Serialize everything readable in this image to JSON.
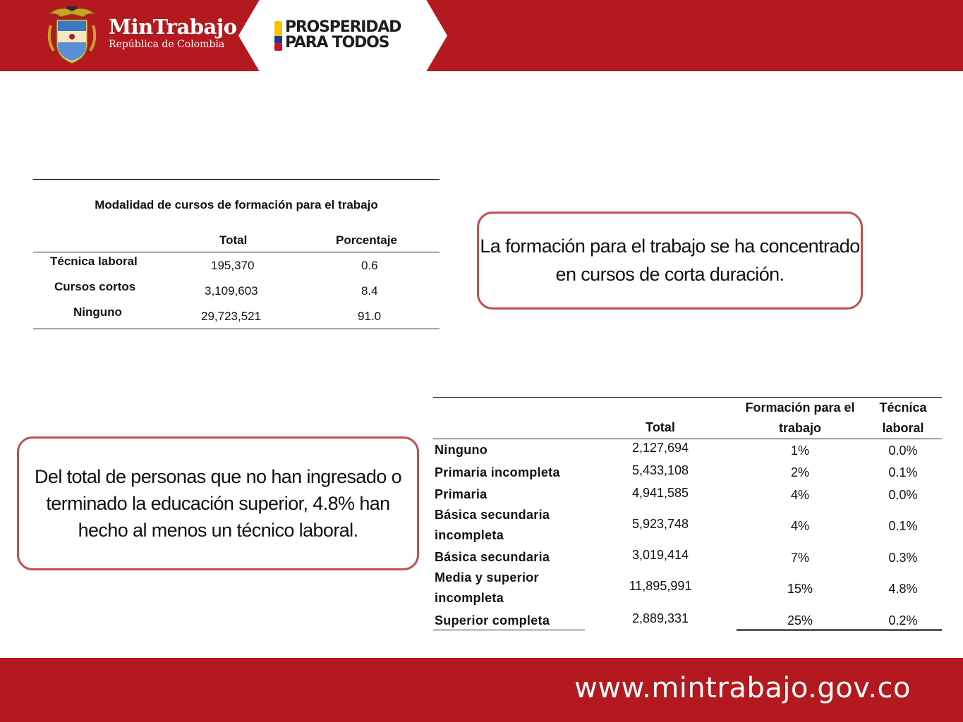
{
  "header": {
    "ministry_name": "MinTrabajo",
    "ministry_sub": "República de Colombia",
    "slogan_line1": "PROSPERIDAD",
    "slogan_line2": "PARA TODOS",
    "brand_color": "#b3191e"
  },
  "table1": {
    "title": "Modalidad de cursos de formación para el trabajo",
    "col_total": "Total",
    "col_pct": "Porcentaje",
    "rows": [
      {
        "label": "Técnica laboral",
        "total": "195,370",
        "pct": "0.6"
      },
      {
        "label": "Cursos cortos",
        "total": "3,109,603",
        "pct": "8.4"
      },
      {
        "label": "Ninguno",
        "total": "29,723,521",
        "pct": "91.0"
      }
    ]
  },
  "callout1": "La formación para el trabajo se ha concentrado en cursos de corta duración.",
  "callout2": "Del total de personas que no han ingresado o terminado la educación superior, 4.8% han hecho al menos un técnico laboral.",
  "table2": {
    "col_total": "Total",
    "col_formacion": "Formación para el trabajo",
    "col_tecnica": "Técnica laboral",
    "rows": [
      {
        "label": "Ninguno",
        "total": "2,127,694",
        "formacion": "1%",
        "tecnica": "0.0%"
      },
      {
        "label": "Primaria incompleta",
        "total": "5,433,108",
        "formacion": "2%",
        "tecnica": "0.1%"
      },
      {
        "label": "Primaria",
        "total": "4,941,585",
        "formacion": "4%",
        "tecnica": "0.0%"
      },
      {
        "label": "Básica secundaria incompleta",
        "total": "5,923,748",
        "formacion": "4%",
        "tecnica": "0.1%"
      },
      {
        "label": "Básica secundaria",
        "total": "3,019,414",
        "formacion": "7%",
        "tecnica": "0.3%"
      },
      {
        "label": "Media y superior incompleta",
        "total": "11,895,991",
        "formacion": "15%",
        "tecnica": "4.8%"
      },
      {
        "label": "Superior completa",
        "total": "2,889,331",
        "formacion": "25%",
        "tecnica": "0.2%"
      }
    ]
  },
  "footer": {
    "url": "www.mintrabajo.gov.co"
  }
}
